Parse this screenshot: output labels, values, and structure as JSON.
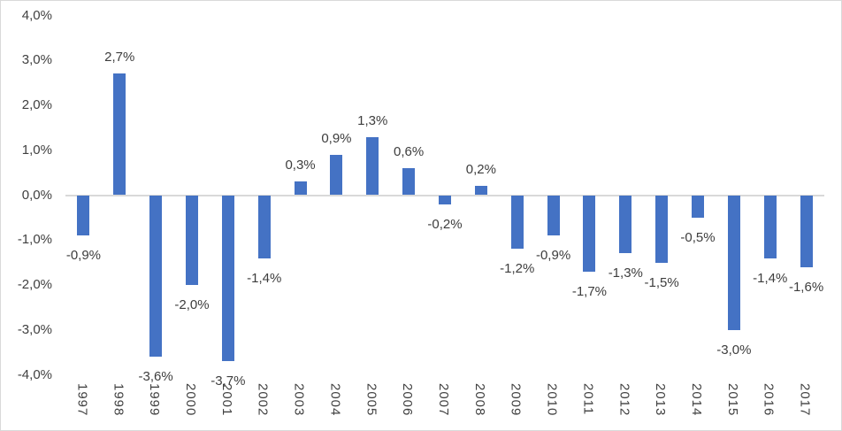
{
  "chart_data": {
    "type": "bar",
    "title": "",
    "subtitle": "",
    "legend": "none",
    "grid": false,
    "categories": [
      "1997",
      "1998",
      "1999",
      "2000",
      "2001",
      "2002",
      "2003",
      "2004",
      "2005",
      "2006",
      "2007",
      "2008",
      "2009",
      "2010",
      "2011",
      "2012",
      "2013",
      "2014",
      "2015",
      "2016",
      "2017"
    ],
    "values": [
      -0.9,
      2.7,
      -3.6,
      -2.0,
      -3.7,
      -1.4,
      0.3,
      0.9,
      1.3,
      0.6,
      -0.2,
      0.2,
      -1.2,
      -0.9,
      -1.7,
      -1.3,
      -1.5,
      -0.5,
      -3.0,
      -1.4,
      -1.6
    ],
    "data_labels": [
      "-0,9%",
      "2,7%",
      "-3,6%",
      "-2,0%",
      "-3,7%",
      "-1,4%",
      "0,3%",
      "0,9%",
      "1,3%",
      "0,6%",
      "-0,2%",
      "0,2%",
      "-1,2%",
      "-0,9%",
      "-1,7%",
      "-1,3%",
      "-1,5%",
      "-0,5%",
      "-3,0%",
      "-1,4%",
      "-1,6%"
    ],
    "y_axis": {
      "tick_labels": [
        "4,0%",
        "3,0%",
        "2,0%",
        "1,0%",
        "0,0%",
        "-1,0%",
        "-2,0%",
        "-3,0%",
        "-4,0%"
      ],
      "tick_values": [
        4,
        3,
        2,
        1,
        0,
        -1,
        -2,
        -3,
        -4
      ],
      "min": -4.0,
      "max": 4.0,
      "number_format": "decimal-comma-percent"
    },
    "x_axis": {
      "label_rotation": "vertical-read-downward"
    },
    "colors": {
      "bar": "#4472C4",
      "axis_line": "#D9D9D9",
      "text": "#404040",
      "frame_border": "#D9D9D9",
      "background": "#FFFFFF"
    }
  }
}
